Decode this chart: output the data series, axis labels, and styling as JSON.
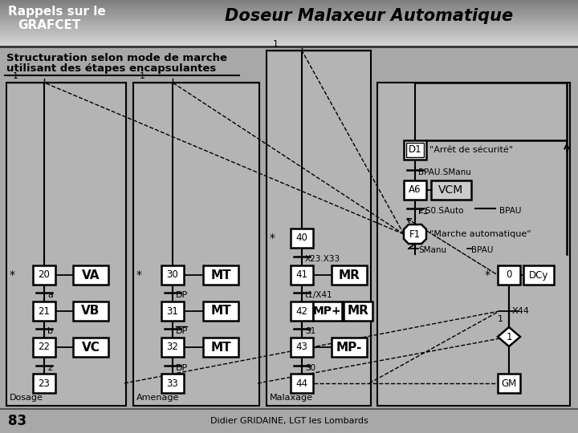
{
  "bg": "#a8a8a8",
  "title": "Doseur Malaxeur Automatique",
  "lbl_l1": "Rappels sur le",
  "lbl_l2": "GRAFCET",
  "sub1": "Structuration selon mode de marche",
  "sub2": "utilisant des étapes encapsulantes",
  "footer_n": "83",
  "footer_t": "Didier GRIDAINE, LGT les Lombards",
  "white": "#ffffff",
  "lgray": "#cccccc",
  "mgray": "#b4b4b4",
  "hdr_light": "#d8d8d8",
  "hdr_dark": "#888888"
}
